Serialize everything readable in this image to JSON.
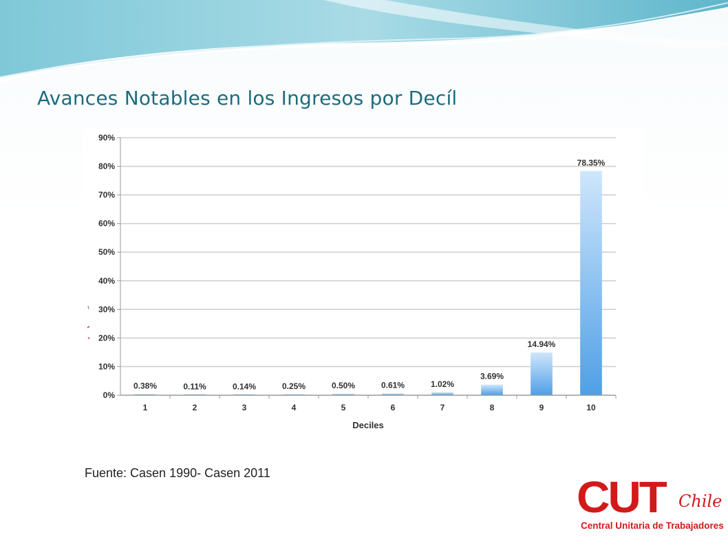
{
  "slide": {
    "title": "Avances Notables en los Ingresos por Decíl",
    "source": "Fuente: Casen 1990- Casen 2011"
  },
  "logo": {
    "main": "CUT",
    "country": "Chile",
    "subtitle": "Central Unitaria de Trabajadores",
    "color": "#d11a1a"
  },
  "colors": {
    "title": "#1d6b7e",
    "bar_top": "#cfe6fb",
    "bar_bottom": "#4f9fe6",
    "grid": "#d0d0d0"
  },
  "chart_data": {
    "type": "bar",
    "title": "",
    "xlabel": "Deciles",
    "ylabel": "",
    "categories": [
      "1",
      "2",
      "3",
      "4",
      "5",
      "6",
      "7",
      "8",
      "9",
      "10"
    ],
    "values": [
      0.38,
      0.11,
      0.14,
      0.25,
      0.5,
      0.61,
      1.02,
      3.69,
      14.94,
      78.35
    ],
    "data_labels": [
      "0.38%",
      "0.11%",
      "0.14%",
      "0.25%",
      "0.50%",
      "0.61%",
      "1.02%",
      "3.69%",
      "14.94%",
      "78.35%"
    ],
    "ylim": [
      0,
      90
    ],
    "yticks": [
      "0%",
      "10%",
      "20%",
      "30%",
      "40%",
      "50%",
      "60%",
      "70%",
      "80%",
      "90%"
    ],
    "grid": true,
    "legend": "none"
  }
}
